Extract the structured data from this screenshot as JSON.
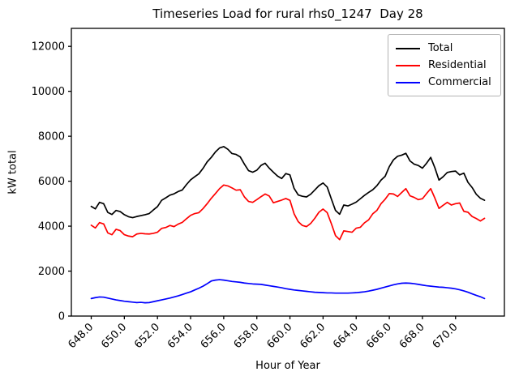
{
  "figure": {
    "title": "Timeseries Load for rural rhs0_1247  Day 28"
  },
  "chart_data": {
    "type": "line",
    "title": "Timeseries Load for rural rhs0_1247  Day 28",
    "xlabel": "Hour of Year",
    "ylabel": "kW total",
    "xlim": [
      646.8,
      672.95
    ],
    "ylim": [
      0,
      12800
    ],
    "grid": false,
    "xticks": [
      648,
      650,
      652,
      654,
      656,
      658,
      660,
      662,
      664,
      666,
      668,
      670
    ],
    "xtick_labels": [
      "648.0",
      "650.0",
      "652.0",
      "654.0",
      "656.0",
      "658.0",
      "660.0",
      "662.0",
      "664.0",
      "666.0",
      "668.0",
      "670.0"
    ],
    "yticks": [
      0,
      2000,
      4000,
      6000,
      8000,
      10000,
      12000
    ],
    "ytick_labels": [
      "0",
      "2000",
      "4000",
      "6000",
      "8000",
      "10000",
      "12000"
    ],
    "x_start": 648.0,
    "x_step": 0.25,
    "legend": {
      "position": "upper right",
      "entries": [
        {
          "label": "Total",
          "color": "#000000"
        },
        {
          "label": "Residential",
          "color": "#ff0000"
        },
        {
          "label": "Commercial",
          "color": "#0000ff"
        }
      ]
    },
    "series": [
      {
        "name": "Total",
        "color": "#000000",
        "values": [
          4880,
          4770,
          5060,
          5000,
          4610,
          4520,
          4700,
          4650,
          4510,
          4420,
          4380,
          4430,
          4470,
          4510,
          4560,
          4720,
          4870,
          5150,
          5260,
          5380,
          5440,
          5540,
          5610,
          5850,
          6060,
          6200,
          6330,
          6570,
          6860,
          7060,
          7300,
          7480,
          7540,
          7420,
          7230,
          7190,
          7080,
          6760,
          6470,
          6400,
          6490,
          6700,
          6800,
          6580,
          6400,
          6230,
          6120,
          6340,
          6280,
          5680,
          5390,
          5330,
          5300,
          5420,
          5610,
          5800,
          5920,
          5740,
          5210,
          4700,
          4530,
          4940,
          4900,
          4980,
          5070,
          5220,
          5370,
          5500,
          5620,
          5800,
          6050,
          6220,
          6650,
          6950,
          7110,
          7160,
          7240,
          6900,
          6760,
          6700,
          6580,
          6800,
          7060,
          6600,
          6050,
          6200,
          6390,
          6430,
          6450,
          6280,
          6360,
          5950,
          5720,
          5420,
          5240,
          5150
        ]
      },
      {
        "name": "Residential",
        "color": "#ff0000",
        "values": [
          4040,
          3920,
          4160,
          4100,
          3700,
          3620,
          3860,
          3800,
          3620,
          3560,
          3530,
          3650,
          3680,
          3660,
          3650,
          3680,
          3730,
          3900,
          3940,
          4030,
          3980,
          4090,
          4170,
          4330,
          4480,
          4560,
          4600,
          4780,
          5000,
          5240,
          5450,
          5670,
          5830,
          5790,
          5700,
          5600,
          5620,
          5300,
          5100,
          5060,
          5180,
          5310,
          5430,
          5340,
          5040,
          5100,
          5160,
          5230,
          5150,
          4550,
          4200,
          4030,
          3980,
          4120,
          4350,
          4620,
          4760,
          4600,
          4110,
          3580,
          3400,
          3790,
          3760,
          3730,
          3910,
          3950,
          4150,
          4280,
          4550,
          4700,
          5000,
          5200,
          5450,
          5430,
          5320,
          5500,
          5670,
          5350,
          5280,
          5180,
          5220,
          5450,
          5670,
          5250,
          4790,
          4930,
          5060,
          4940,
          5000,
          5030,
          4660,
          4620,
          4430,
          4340,
          4230,
          4350
        ]
      },
      {
        "name": "Commercial",
        "color": "#0000ff",
        "values": [
          780,
          820,
          850,
          840,
          800,
          760,
          720,
          690,
          660,
          640,
          620,
          600,
          610,
          590,
          600,
          640,
          680,
          720,
          760,
          800,
          850,
          900,
          960,
          1020,
          1080,
          1160,
          1240,
          1330,
          1440,
          1560,
          1600,
          1620,
          1600,
          1570,
          1540,
          1520,
          1500,
          1470,
          1450,
          1430,
          1420,
          1410,
          1380,
          1350,
          1320,
          1290,
          1260,
          1220,
          1190,
          1160,
          1140,
          1120,
          1100,
          1080,
          1060,
          1050,
          1040,
          1030,
          1030,
          1020,
          1020,
          1020,
          1020,
          1030,
          1040,
          1060,
          1080,
          1110,
          1150,
          1190,
          1240,
          1290,
          1340,
          1390,
          1430,
          1460,
          1470,
          1460,
          1440,
          1410,
          1380,
          1350,
          1330,
          1310,
          1290,
          1280,
          1260,
          1240,
          1210,
          1170,
          1120,
          1060,
          990,
          920,
          860,
          780
        ]
      }
    ]
  }
}
